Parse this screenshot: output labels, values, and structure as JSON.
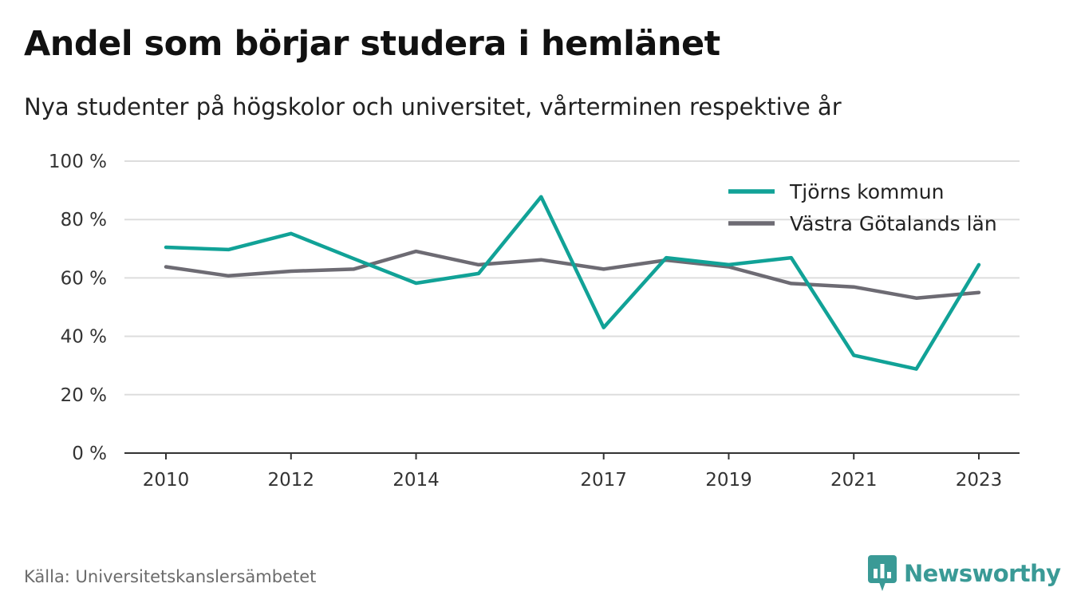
{
  "header": {
    "title": "Andel som börjar studera i hemlänet",
    "subtitle": "Nya studenter på högskolor och universitet, vårterminen respektive år"
  },
  "footer": {
    "source": "Källa: Universitetskanslersämbetet",
    "brand": "Newsworthy"
  },
  "colors": {
    "tjorn": "#11a297",
    "vastra": "#6d6b73",
    "grid": "#dddddd",
    "axis": "#333333",
    "brand": "#3a9a96"
  },
  "chart_data": {
    "type": "line",
    "x": [
      2010,
      2011,
      2012,
      2013,
      2014,
      2015,
      2016,
      2017,
      2018,
      2019,
      2020,
      2021,
      2022,
      2023
    ],
    "xticks": [
      2010,
      2012,
      2014,
      2017,
      2019,
      2021,
      2023
    ],
    "ylim": [
      0,
      100
    ],
    "yticks": [
      0,
      20,
      40,
      60,
      80,
      100
    ],
    "ytick_labels": [
      "0 %",
      "20 %",
      "40 %",
      "60 %",
      "80 %",
      "100 %"
    ],
    "grid": true,
    "legend_position": "top-right",
    "series": [
      {
        "name": "Tjörns kommun",
        "color": "#11a297",
        "values": [
          70.5,
          69.7,
          75.2,
          66.6,
          58.2,
          61.5,
          87.8,
          43.0,
          66.9,
          64.5,
          66.9,
          33.5,
          28.8,
          64.5
        ]
      },
      {
        "name": "Västra Götalands län",
        "color": "#6d6b73",
        "values": [
          63.8,
          60.7,
          62.3,
          63.0,
          69.1,
          64.5,
          66.2,
          63.0,
          66.1,
          63.8,
          58.1,
          56.9,
          53.1,
          55.0
        ]
      }
    ]
  }
}
